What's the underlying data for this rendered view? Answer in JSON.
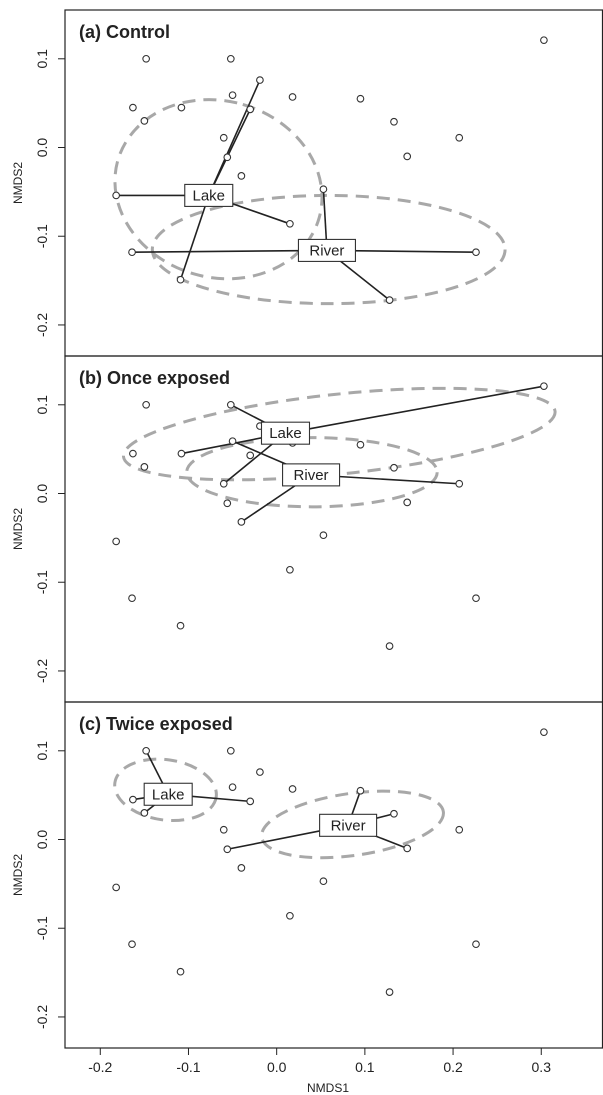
{
  "chart_data": {
    "type": "scatter",
    "xlabel": "NMDS1",
    "ylabel": "NMDS2",
    "xlim": [
      -0.24,
      0.37
    ],
    "ylim": [
      -0.235,
      0.155
    ],
    "xticks": [
      -0.2,
      -0.1,
      0.0,
      0.1,
      0.2,
      0.3
    ],
    "yticks": [
      -0.2,
      -0.1,
      0.0,
      0.1
    ],
    "tick_labels_x": [
      "-0.2",
      "-0.1",
      "0.0",
      "0.1",
      "0.2",
      "0.3"
    ],
    "tick_labels_y": [
      "-0.2",
      "-0.1",
      "0.0",
      "0.1"
    ],
    "points": [
      {
        "x": -0.148,
        "y": 0.1
      },
      {
        "x": -0.052,
        "y": 0.1
      },
      {
        "x": -0.163,
        "y": 0.045
      },
      {
        "x": -0.108,
        "y": 0.045
      },
      {
        "x": -0.15,
        "y": 0.03
      },
      {
        "x": -0.05,
        "y": 0.059
      },
      {
        "x": -0.019,
        "y": 0.076
      },
      {
        "x": -0.03,
        "y": 0.043
      },
      {
        "x": 0.018,
        "y": 0.057
      },
      {
        "x": 0.095,
        "y": 0.055
      },
      {
        "x": -0.06,
        "y": 0.011
      },
      {
        "x": -0.056,
        "y": -0.011
      },
      {
        "x": -0.04,
        "y": -0.032
      },
      {
        "x": 0.133,
        "y": 0.029
      },
      {
        "x": 0.148,
        "y": -0.01
      },
      {
        "x": 0.207,
        "y": 0.011
      },
      {
        "x": 0.303,
        "y": 0.121
      },
      {
        "x": -0.182,
        "y": -0.054
      },
      {
        "x": 0.053,
        "y": -0.047
      },
      {
        "x": 0.015,
        "y": -0.086
      },
      {
        "x": -0.164,
        "y": -0.118
      },
      {
        "x": 0.226,
        "y": -0.118
      },
      {
        "x": -0.109,
        "y": -0.149
      },
      {
        "x": 0.128,
        "y": -0.172
      }
    ],
    "panels": [
      {
        "label": "(a) Control",
        "groups": [
          {
            "name": "Lake",
            "centroid": [
              -0.077,
              -0.054
            ],
            "members": [
              [
                -0.182,
                -0.054
              ],
              [
                -0.019,
                0.076
              ],
              [
                -0.03,
                0.043
              ],
              [
                0.015,
                -0.086
              ],
              [
                -0.109,
                -0.149
              ]
            ],
            "ellipse": {
              "cx": -0.066,
              "cy": -0.047,
              "rx": 0.1,
              "ry": 0.118,
              "angle": 74
            }
          },
          {
            "name": "River",
            "centroid": [
              0.057,
              -0.116
            ],
            "members": [
              [
                -0.164,
                -0.118
              ],
              [
                0.226,
                -0.118
              ],
              [
                0.053,
                -0.047
              ],
              [
                0.128,
                -0.172
              ]
            ],
            "ellipse": {
              "cx": 0.059,
              "cy": -0.115,
              "rx": 0.2,
              "ry": 0.061,
              "angle": 0
            }
          }
        ]
      },
      {
        "label": "(b)  Once exposed",
        "groups": [
          {
            "name": "Lake",
            "centroid": [
              0.01,
              0.068
            ],
            "members": [
              [
                -0.052,
                0.1
              ],
              [
                -0.108,
                0.045
              ],
              [
                -0.06,
                0.011
              ],
              [
                0.303,
                0.121
              ]
            ],
            "ellipse": {
              "cx": 0.071,
              "cy": 0.067,
              "rx": 0.246,
              "ry": 0.045,
              "angle": 6
            }
          },
          {
            "name": "River",
            "centroid": [
              0.039,
              0.021
            ],
            "members": [
              [
                -0.05,
                0.059
              ],
              [
                -0.04,
                -0.032
              ],
              [
                0.207,
                0.011
              ]
            ],
            "ellipse": {
              "cx": 0.04,
              "cy": 0.024,
              "rx": 0.142,
              "ry": 0.039,
              "angle": 0
            }
          }
        ]
      },
      {
        "label": "(c)  Twice exposed",
        "groups": [
          {
            "name": "Lake",
            "centroid": [
              -0.123,
              0.051
            ],
            "members": [
              [
                -0.148,
                0.1
              ],
              [
                -0.163,
                0.045
              ],
              [
                -0.15,
                0.03
              ],
              [
                -0.03,
                0.043
              ]
            ],
            "ellipse": {
              "cx": -0.126,
              "cy": 0.056,
              "rx": 0.058,
              "ry": 0.034,
              "angle": -8
            }
          },
          {
            "name": "River",
            "centroid": [
              0.081,
              0.016
            ],
            "members": [
              [
                0.095,
                0.055
              ],
              [
                0.133,
                0.029
              ],
              [
                0.148,
                -0.01
              ],
              [
                -0.056,
                -0.011
              ]
            ],
            "ellipse": {
              "cx": 0.086,
              "cy": 0.017,
              "rx": 0.104,
              "ry": 0.035,
              "angle": 8
            }
          }
        ]
      }
    ]
  }
}
